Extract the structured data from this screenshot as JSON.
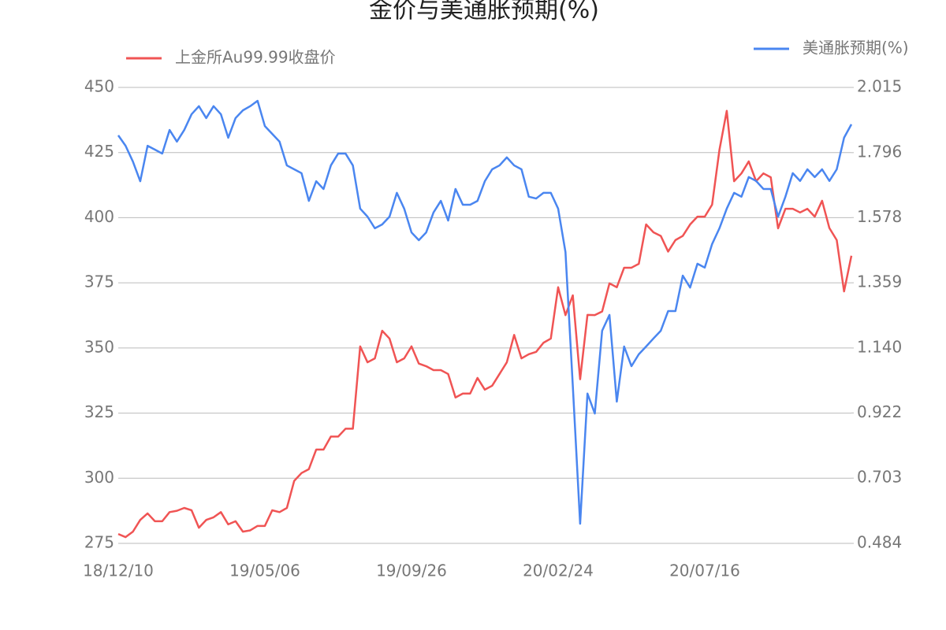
{
  "chart_data": {
    "type": "line",
    "title": "金价与美通胀预期(%)",
    "categories": [
      "18/12/10",
      null,
      null,
      null,
      null,
      null,
      null,
      null,
      null,
      null,
      null,
      null,
      null,
      null,
      null,
      null,
      null,
      null,
      null,
      null,
      "19/05/06",
      null,
      null,
      null,
      null,
      null,
      null,
      null,
      null,
      null,
      null,
      null,
      null,
      null,
      null,
      null,
      null,
      null,
      null,
      null,
      "19/09/26",
      null,
      null,
      null,
      null,
      null,
      null,
      null,
      null,
      null,
      null,
      null,
      null,
      null,
      null,
      null,
      null,
      null,
      null,
      null,
      "20/02/24",
      null,
      null,
      null,
      null,
      null,
      null,
      null,
      null,
      null,
      null,
      null,
      null,
      null,
      null,
      null,
      null,
      null,
      null,
      null,
      "20/07/16",
      null,
      null,
      null,
      null,
      null,
      null,
      null,
      null,
      null,
      null,
      null,
      null,
      null,
      null,
      null,
      null,
      null,
      null,
      null,
      null
    ],
    "series": [
      {
        "name": "上金所Au99.99收盘价",
        "color": "#f05454",
        "axis": "y",
        "values": [
          278.6,
          277.4,
          279.5,
          284,
          286.5,
          283.5,
          283.5,
          287,
          287.5,
          288.6,
          287.7,
          281,
          284,
          285,
          287,
          282.3,
          283.5,
          279.5,
          280,
          281.7,
          281.7,
          287.7,
          287,
          288.6,
          299,
          302,
          303.5,
          311,
          311,
          316,
          316,
          319,
          319,
          350.6,
          344.5,
          346,
          356.6,
          353.6,
          344.5,
          346,
          350.6,
          344,
          343,
          341.5,
          341.5,
          340,
          331,
          332.5,
          332.5,
          338.5,
          334,
          335.5,
          340,
          344.5,
          355,
          346,
          347.6,
          348.5,
          352,
          353.6,
          373.3,
          362.6,
          370.2,
          338,
          362.7,
          362.6,
          364,
          374.8,
          373.3,
          380.8,
          380.8,
          382.3,
          397.4,
          394.4,
          393,
          387,
          391.4,
          393,
          397.4,
          400.4,
          400.4,
          405,
          426,
          441,
          414,
          417,
          421.6,
          414,
          417,
          415.5,
          395.9,
          403.4,
          403.4,
          402,
          403.4,
          400.4,
          406.5,
          396,
          391.4,
          371.7,
          385.4
        ]
      },
      {
        "name": "美通胀预期(%)",
        "color": "#4a86f0",
        "axis": "y2",
        "values": [
          1.854,
          1.819,
          1.766,
          1.7,
          1.819,
          1.806,
          1.793,
          1.872,
          1.833,
          1.872,
          1.925,
          1.952,
          1.912,
          1.952,
          1.925,
          1.846,
          1.912,
          1.938,
          1.952,
          1.97,
          1.885,
          1.859,
          1.833,
          1.753,
          1.74,
          1.727,
          1.634,
          1.7,
          1.674,
          1.753,
          1.793,
          1.793,
          1.753,
          1.608,
          1.581,
          1.542,
          1.555,
          1.581,
          1.661,
          1.608,
          1.528,
          1.502,
          1.528,
          1.595,
          1.634,
          1.568,
          1.674,
          1.621,
          1.621,
          1.634,
          1.7,
          1.74,
          1.753,
          1.78,
          1.753,
          1.74,
          1.648,
          1.642,
          1.661,
          1.661,
          1.608,
          1.462,
          1.013,
          0.55,
          0.987,
          0.92,
          1.198,
          1.251,
          0.96,
          1.145,
          1.079,
          1.119,
          1.145,
          1.172,
          1.198,
          1.264,
          1.264,
          1.383,
          1.343,
          1.423,
          1.41,
          1.489,
          1.542,
          1.608,
          1.661,
          1.648,
          1.714,
          1.701,
          1.674,
          1.674,
          1.581,
          1.648,
          1.727,
          1.701,
          1.74,
          1.714,
          1.74,
          1.701,
          1.74,
          1.846,
          1.891
        ]
      }
    ],
    "ylim": [
      275,
      450
    ],
    "yticks": [
      275,
      300,
      325,
      350,
      375,
      400,
      425,
      450
    ],
    "y2lim": [
      0.484,
      2.015
    ],
    "y2ticks": [
      0.484,
      0.703,
      0.922,
      {
        "value": 1.14,
        "label": "1.140"
      },
      1.359,
      1.578,
      1.796,
      2.015
    ],
    "grid": true
  }
}
